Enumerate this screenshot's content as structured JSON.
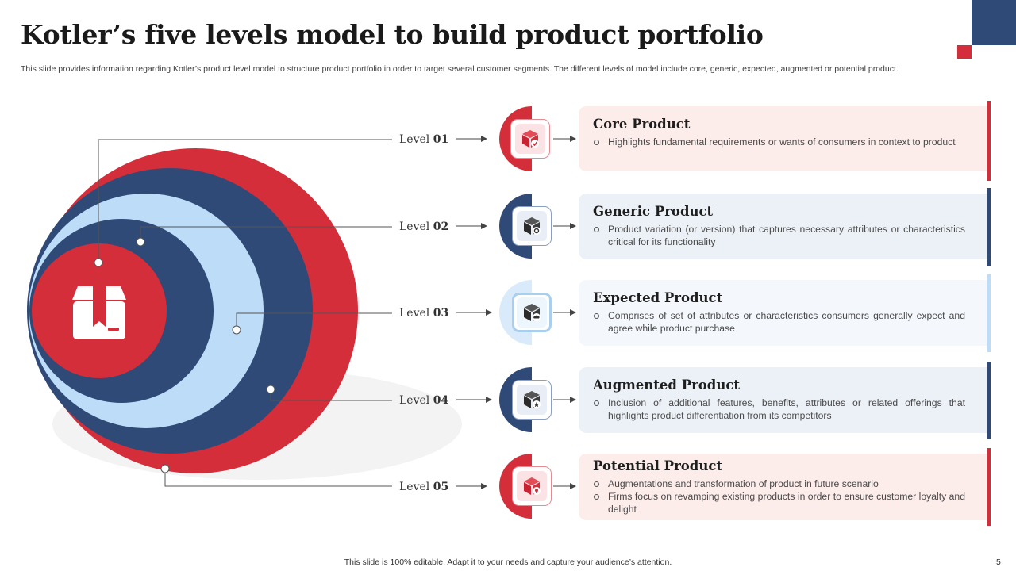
{
  "slide": {
    "title": "Kotler’s five levels model to build product portfolio",
    "description": "This slide provides information regarding Kotler’s product level model to structure product portfolio in order to target several customer segments. The different levels of model include core, generic, expected, augmented or potential product.",
    "footer": "This slide is 100% editable.  Adapt it to your needs and capture your audience’s attention.",
    "page_number": "5"
  },
  "colors": {
    "red": "#d42e3b",
    "navy": "#2f4a77",
    "light_blue": "#bcdcf7",
    "card_pink": "#fcecea",
    "card_blue": "#ecf1f7",
    "card_light": "#f4f8fd"
  },
  "diagram": {
    "center_icon": "package-box-icon"
  },
  "levels": [
    {
      "prefix": "Level ",
      "number": "01",
      "title": "Core Product",
      "bullets": [
        "Highlights fundamental requirements  or wants of consumers in context to product"
      ],
      "icon": "cube-check-icon"
    },
    {
      "prefix": "Level ",
      "number": "02",
      "title": "Generic Product",
      "bullets": [
        "Product variation  (or version)  that captures necessary attributes or characteristics critical for its functionality"
      ],
      "icon": "cube-settings-icon"
    },
    {
      "prefix": "Level ",
      "number": "03",
      "title": "Expected Product",
      "bullets": [
        "Comprises of set of attributes or characteristics consumers generally expect and agree while product purchase"
      ],
      "icon": "cube-cloud-icon"
    },
    {
      "prefix": "Level ",
      "number": "04",
      "title": "Augmented Product",
      "bullets": [
        "Inclusion of additional features, benefits, attributes or related offerings that highlights product differentiation  from its competitors"
      ],
      "icon": "cube-star-icon"
    },
    {
      "prefix": "Level ",
      "number": "05",
      "title": "Potential Product",
      "bullets": [
        "Augmentations and transformation of product in future scenario",
        "Firms focus on revamping  existing products in order to ensure customer loyalty and delight"
      ],
      "icon": "cube-bulb-icon"
    }
  ]
}
